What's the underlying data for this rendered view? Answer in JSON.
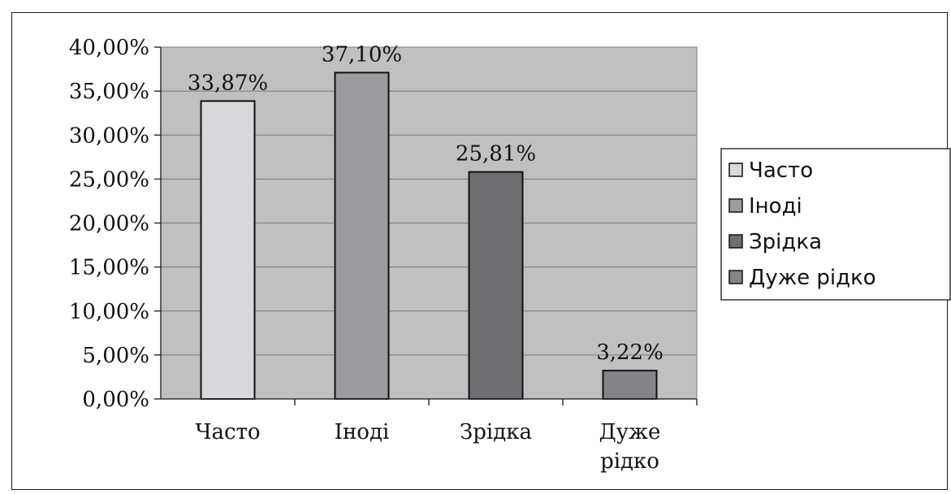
{
  "chart_data": {
    "type": "bar",
    "title": "",
    "xlabel": "",
    "ylabel": "",
    "categories": [
      [
        "Часто"
      ],
      [
        "Іноді"
      ],
      [
        "Зрідка"
      ],
      [
        "Дуже",
        "рідко"
      ]
    ],
    "values": [
      33.87,
      37.1,
      25.81,
      3.22
    ],
    "data_labels": [
      "33,87%",
      "37,10%",
      "25,81%",
      "3,22%"
    ],
    "ylim": [
      0,
      40
    ],
    "y_ticks": [
      0,
      5,
      10,
      15,
      20,
      25,
      30,
      35,
      40
    ],
    "y_tick_labels": [
      "0,00%",
      "5,00%",
      "10,00%",
      "15,00%",
      "20,00%",
      "25,00%",
      "30,00%",
      "35,00%",
      "40,00%"
    ],
    "grid": true,
    "legend": {
      "position": "right",
      "entries": [
        "Часто",
        "Іноді",
        "Зрідка",
        "Дуже рідко"
      ]
    },
    "colors": {
      "plot_background": "#c0c0c0",
      "bars": [
        "#d9d9dc",
        "#9c9c9e",
        "#6e6e70",
        "#858587"
      ],
      "gridline": "#7a7a7a",
      "axis": "#333333"
    }
  }
}
